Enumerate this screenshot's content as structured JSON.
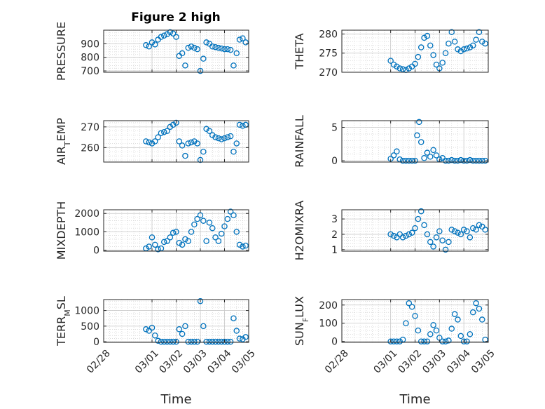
{
  "figure_title": "Figure 2 high",
  "colors": {
    "marker": "#0072BD",
    "axis": "#262626",
    "grid": "#c8c8c8"
  },
  "shared_x": {
    "label": "Time",
    "range": [
      "2016-02-28",
      "2016-03-05"
    ],
    "tick_labels": [
      "02/28",
      "03/01",
      "03/02",
      "03/03",
      "03/04",
      "03/05"
    ],
    "tick_dates": [
      "2016-02-28",
      "2016-03-01",
      "2016-03-02",
      "2016-03-03",
      "2016-03-04",
      "2016-03-05"
    ]
  },
  "chart_data": [
    {
      "type": "scatter",
      "name": "pressure",
      "title": "Figure 2 high",
      "ylabel": "PRESSURE",
      "xlabel": "",
      "grid": true,
      "ylim": [
        690,
        1000
      ],
      "yticks": [
        700,
        800,
        900
      ],
      "x": [
        "2016-02-29 18:00",
        "2016-02-29 21:00",
        "2016-03-01 00:00",
        "2016-03-01 03:00",
        "2016-03-01 06:00",
        "2016-03-01 09:00",
        "2016-03-01 12:00",
        "2016-03-01 15:00",
        "2016-03-01 18:00",
        "2016-03-01 21:00",
        "2016-03-02 00:00",
        "2016-03-02 03:00",
        "2016-03-02 06:00",
        "2016-03-02 09:00",
        "2016-03-02 12:00",
        "2016-03-02 15:00",
        "2016-03-02 18:00",
        "2016-03-02 21:00",
        "2016-03-03 00:00",
        "2016-03-03 03:00",
        "2016-03-03 06:00",
        "2016-03-03 09:00",
        "2016-03-03 12:00",
        "2016-03-03 15:00",
        "2016-03-03 18:00",
        "2016-03-03 21:00",
        "2016-03-04 00:00",
        "2016-03-04 03:00",
        "2016-03-04 06:00",
        "2016-03-04 09:00",
        "2016-03-04 12:00",
        "2016-03-04 15:00",
        "2016-03-04 18:00",
        "2016-03-04 21:00"
      ],
      "y": [
        890,
        880,
        910,
        895,
        930,
        950,
        960,
        970,
        985,
        975,
        950,
        810,
        830,
        740,
        870,
        880,
        870,
        860,
        700,
        790,
        910,
        900,
        880,
        875,
        870,
        865,
        860,
        860,
        855,
        740,
        830,
        930,
        940,
        910
      ]
    },
    {
      "type": "scatter",
      "name": "theta",
      "title": "",
      "ylabel": "THETA",
      "xlabel": "",
      "grid": true,
      "ylim": [
        270,
        281
      ],
      "yticks": [
        270,
        275,
        280
      ],
      "x": [
        "2016-03-01 00:00",
        "2016-03-01 03:00",
        "2016-03-01 06:00",
        "2016-03-01 09:00",
        "2016-03-01 12:00",
        "2016-03-01 15:00",
        "2016-03-01 18:00",
        "2016-03-01 21:00",
        "2016-03-02 00:00",
        "2016-03-02 03:00",
        "2016-03-02 06:00",
        "2016-03-02 09:00",
        "2016-03-02 12:00",
        "2016-03-02 15:00",
        "2016-03-02 18:00",
        "2016-03-02 21:00",
        "2016-03-03 00:00",
        "2016-03-03 03:00",
        "2016-03-03 06:00",
        "2016-03-03 09:00",
        "2016-03-03 12:00",
        "2016-03-03 15:00",
        "2016-03-03 18:00",
        "2016-03-03 21:00",
        "2016-03-04 00:00",
        "2016-03-04 03:00",
        "2016-03-04 06:00",
        "2016-03-04 09:00",
        "2016-03-04 12:00",
        "2016-03-04 15:00",
        "2016-03-04 18:00",
        "2016-03-04 21:00"
      ],
      "y": [
        273,
        272,
        271.5,
        271,
        270.8,
        270.6,
        271,
        271.5,
        272.2,
        274,
        276.5,
        279,
        279.5,
        277,
        274.5,
        272,
        271,
        272.5,
        275,
        277.5,
        280.5,
        278,
        276,
        275.5,
        276,
        276.2,
        276.5,
        277,
        278.5,
        280.5,
        278,
        277.5
      ]
    },
    {
      "type": "scatter",
      "name": "air_temp",
      "title": "",
      "ylabel": "AIR_TEMP",
      "xlabel": "",
      "grid": true,
      "ylim": [
        253,
        273
      ],
      "yticks": [
        260,
        270
      ],
      "x": [
        "2016-02-29 18:00",
        "2016-02-29 21:00",
        "2016-03-01 00:00",
        "2016-03-01 03:00",
        "2016-03-01 06:00",
        "2016-03-01 09:00",
        "2016-03-01 12:00",
        "2016-03-01 15:00",
        "2016-03-01 18:00",
        "2016-03-01 21:00",
        "2016-03-02 00:00",
        "2016-03-02 03:00",
        "2016-03-02 06:00",
        "2016-03-02 09:00",
        "2016-03-02 12:00",
        "2016-03-02 15:00",
        "2016-03-02 18:00",
        "2016-03-02 21:00",
        "2016-03-03 00:00",
        "2016-03-03 03:00",
        "2016-03-03 06:00",
        "2016-03-03 09:00",
        "2016-03-03 12:00",
        "2016-03-03 15:00",
        "2016-03-03 18:00",
        "2016-03-03 21:00",
        "2016-03-04 00:00",
        "2016-03-04 03:00",
        "2016-03-04 06:00",
        "2016-03-04 09:00",
        "2016-03-04 12:00",
        "2016-03-04 15:00",
        "2016-03-04 18:00",
        "2016-03-04 21:00"
      ],
      "y": [
        263,
        262.5,
        262,
        263,
        265,
        267,
        267.5,
        268,
        270,
        271,
        272,
        263,
        261,
        256,
        262,
        262.5,
        263,
        262,
        254,
        258,
        269,
        268,
        266,
        265,
        264.5,
        264,
        264.5,
        265,
        265.5,
        258,
        262,
        271,
        270.5,
        271
      ]
    },
    {
      "type": "scatter",
      "name": "rainfall",
      "title": "",
      "ylabel": "RAINFALL",
      "xlabel": "",
      "grid": true,
      "ylim": [
        -0.2,
        6
      ],
      "yticks": [
        0,
        5
      ],
      "x": [
        "2016-03-01 00:00",
        "2016-03-01 03:00",
        "2016-03-01 06:00",
        "2016-03-01 09:00",
        "2016-03-01 12:00",
        "2016-03-01 15:00",
        "2016-03-01 18:00",
        "2016-03-01 21:00",
        "2016-03-02 00:00",
        "2016-03-02 02:00",
        "2016-03-02 04:00",
        "2016-03-02 06:00",
        "2016-03-02 09:00",
        "2016-03-02 12:00",
        "2016-03-02 15:00",
        "2016-03-02 18:00",
        "2016-03-02 21:00",
        "2016-03-03 00:00",
        "2016-03-03 03:00",
        "2016-03-03 06:00",
        "2016-03-03 09:00",
        "2016-03-03 12:00",
        "2016-03-03 15:00",
        "2016-03-03 18:00",
        "2016-03-03 21:00",
        "2016-03-04 00:00",
        "2016-03-04 03:00",
        "2016-03-04 06:00",
        "2016-03-04 09:00",
        "2016-03-04 12:00",
        "2016-03-04 15:00",
        "2016-03-04 18:00",
        "2016-03-04 21:00"
      ],
      "y": [
        0.3,
        0.8,
        1.4,
        0.2,
        0,
        0,
        0,
        0,
        0,
        3.8,
        5.8,
        2.8,
        0.4,
        1.2,
        0.6,
        1.6,
        0.8,
        0.2,
        0.4,
        0,
        0,
        0.1,
        0,
        0,
        0.1,
        0,
        0,
        0.1,
        0,
        0,
        0,
        0,
        0
      ]
    },
    {
      "type": "scatter",
      "name": "mixdepth",
      "title": "",
      "ylabel": "MIXDEPTH",
      "xlabel": "",
      "grid": true,
      "ylim": [
        -50,
        2200
      ],
      "yticks": [
        0,
        1000,
        2000
      ],
      "x": [
        "2016-02-29 18:00",
        "2016-02-29 21:00",
        "2016-03-01 00:00",
        "2016-03-01 03:00",
        "2016-03-01 06:00",
        "2016-03-01 09:00",
        "2016-03-01 12:00",
        "2016-03-01 15:00",
        "2016-03-01 18:00",
        "2016-03-01 21:00",
        "2016-03-02 00:00",
        "2016-03-02 03:00",
        "2016-03-02 06:00",
        "2016-03-02 09:00",
        "2016-03-02 12:00",
        "2016-03-02 15:00",
        "2016-03-02 18:00",
        "2016-03-02 21:00",
        "2016-03-03 00:00",
        "2016-03-03 03:00",
        "2016-03-03 06:00",
        "2016-03-03 09:00",
        "2016-03-03 12:00",
        "2016-03-03 15:00",
        "2016-03-03 18:00",
        "2016-03-03 21:00",
        "2016-03-04 00:00",
        "2016-03-04 03:00",
        "2016-03-04 06:00",
        "2016-03-04 09:00",
        "2016-03-04 12:00",
        "2016-03-04 15:00",
        "2016-03-04 18:00",
        "2016-03-04 21:00"
      ],
      "y": [
        100,
        200,
        700,
        300,
        50,
        100,
        450,
        500,
        700,
        950,
        1000,
        400,
        300,
        600,
        500,
        1000,
        1400,
        1700,
        1900,
        1600,
        500,
        1500,
        1200,
        700,
        500,
        900,
        1300,
        1700,
        2100,
        1900,
        1000,
        300,
        200,
        250
      ]
    },
    {
      "type": "scatter",
      "name": "h2omixra",
      "title": "",
      "ylabel": "H2OMIXRA",
      "xlabel": "",
      "grid": true,
      "ylim": [
        0.9,
        3.6
      ],
      "yticks": [
        1,
        2,
        3
      ],
      "x": [
        "2016-03-01 00:00",
        "2016-03-01 03:00",
        "2016-03-01 06:00",
        "2016-03-01 09:00",
        "2016-03-01 12:00",
        "2016-03-01 15:00",
        "2016-03-01 18:00",
        "2016-03-01 21:00",
        "2016-03-02 00:00",
        "2016-03-02 03:00",
        "2016-03-02 06:00",
        "2016-03-02 09:00",
        "2016-03-02 12:00",
        "2016-03-02 15:00",
        "2016-03-02 18:00",
        "2016-03-02 21:00",
        "2016-03-03 00:00",
        "2016-03-03 03:00",
        "2016-03-03 06:00",
        "2016-03-03 09:00",
        "2016-03-03 12:00",
        "2016-03-03 15:00",
        "2016-03-03 18:00",
        "2016-03-03 21:00",
        "2016-03-04 00:00",
        "2016-03-04 03:00",
        "2016-03-04 06:00",
        "2016-03-04 09:00",
        "2016-03-04 12:00",
        "2016-03-04 15:00",
        "2016-03-04 18:00",
        "2016-03-04 21:00"
      ],
      "y": [
        2.0,
        1.9,
        1.8,
        2.0,
        1.8,
        1.9,
        2.0,
        2.1,
        2.4,
        3.0,
        3.5,
        2.6,
        2.0,
        1.5,
        1.2,
        1.8,
        2.2,
        1.6,
        1.0,
        1.5,
        2.3,
        2.2,
        2.1,
        2.0,
        2.3,
        2.2,
        1.8,
        2.4,
        2.3,
        2.6,
        2.5,
        2.3
      ]
    },
    {
      "type": "scatter",
      "name": "terr_msl",
      "title": "",
      "ylabel": "TERR_MSL",
      "xlabel": "",
      "grid": true,
      "ylim": [
        -20,
        1350
      ],
      "yticks": [
        0,
        500,
        1000
      ],
      "x": [
        "2016-02-29 18:00",
        "2016-02-29 21:00",
        "2016-03-01 00:00",
        "2016-03-01 03:00",
        "2016-03-01 06:00",
        "2016-03-01 09:00",
        "2016-03-01 12:00",
        "2016-03-01 15:00",
        "2016-03-01 18:00",
        "2016-03-01 21:00",
        "2016-03-02 00:00",
        "2016-03-02 03:00",
        "2016-03-02 06:00",
        "2016-03-02 09:00",
        "2016-03-02 12:00",
        "2016-03-02 15:00",
        "2016-03-02 18:00",
        "2016-03-02 21:00",
        "2016-03-03 00:00",
        "2016-03-03 03:00",
        "2016-03-03 06:00",
        "2016-03-03 09:00",
        "2016-03-03 12:00",
        "2016-03-03 15:00",
        "2016-03-03 18:00",
        "2016-03-03 21:00",
        "2016-03-04 00:00",
        "2016-03-04 03:00",
        "2016-03-04 06:00",
        "2016-03-04 09:00",
        "2016-03-04 12:00",
        "2016-03-04 15:00",
        "2016-03-04 18:00",
        "2016-03-04 21:00"
      ],
      "y": [
        400,
        350,
        450,
        200,
        30,
        0,
        0,
        0,
        0,
        0,
        0,
        400,
        250,
        500,
        0,
        0,
        0,
        0,
        1300,
        500,
        0,
        0,
        0,
        0,
        0,
        0,
        0,
        0,
        0,
        750,
        350,
        100,
        80,
        150
      ]
    },
    {
      "type": "scatter",
      "name": "sun_flux",
      "title": "",
      "ylabel": "SUN_FLUX",
      "xlabel": "",
      "grid": true,
      "ylim": [
        -5,
        230
      ],
      "yticks": [
        0,
        100,
        200
      ],
      "x": [
        "2016-03-01 00:00",
        "2016-03-01 03:00",
        "2016-03-01 06:00",
        "2016-03-01 09:00",
        "2016-03-01 12:00",
        "2016-03-01 15:00",
        "2016-03-01 18:00",
        "2016-03-01 21:00",
        "2016-03-02 00:00",
        "2016-03-02 03:00",
        "2016-03-02 06:00",
        "2016-03-02 09:00",
        "2016-03-02 12:00",
        "2016-03-02 15:00",
        "2016-03-02 18:00",
        "2016-03-02 21:00",
        "2016-03-03 00:00",
        "2016-03-03 03:00",
        "2016-03-03 06:00",
        "2016-03-03 09:00",
        "2016-03-03 12:00",
        "2016-03-03 15:00",
        "2016-03-03 18:00",
        "2016-03-03 21:00",
        "2016-03-04 00:00",
        "2016-03-04 03:00",
        "2016-03-04 06:00",
        "2016-03-04 09:00",
        "2016-03-04 12:00",
        "2016-03-04 15:00",
        "2016-03-04 18:00",
        "2016-03-04 21:00"
      ],
      "y": [
        0,
        0,
        0,
        0,
        10,
        100,
        210,
        190,
        140,
        60,
        0,
        0,
        0,
        40,
        90,
        60,
        20,
        0,
        0,
        5,
        70,
        150,
        120,
        30,
        0,
        0,
        40,
        160,
        210,
        180,
        120,
        10
      ]
    }
  ]
}
